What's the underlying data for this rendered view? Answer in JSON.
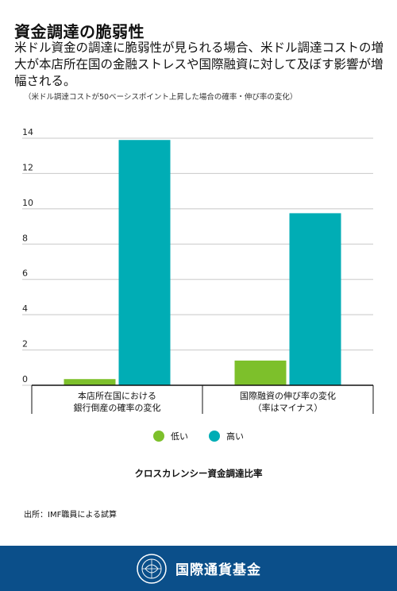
{
  "header": {
    "title": "資金調達の脆弱性",
    "subtitle": "米ドル資金の調達に脆弱性が見られる場合、米ドル調達コストの増大が本店所在国の金融ストレスや国際融資に対して及ぼす影響が増幅される。",
    "note": "（米ドル調達コストが50ベーシスポイント上昇した場合の確率・伸び率の変化）"
  },
  "chart_data": {
    "type": "bar",
    "categories": [
      "本店所在国における\n銀行倒産の確率の変化",
      "国際融資の伸び率の変化\n（率はマイナス）"
    ],
    "series": [
      {
        "name": "低い",
        "color": "#7dc02b",
        "values": [
          0.35,
          1.4
        ]
      },
      {
        "name": "高い",
        "color": "#00adb5",
        "values": [
          13.9,
          9.75
        ]
      }
    ],
    "yticks": [
      0,
      2,
      4,
      6,
      8,
      10,
      12,
      14
    ],
    "ylim": [
      0,
      14
    ],
    "xlabel": "クロスカレンシー資金調達比率",
    "grid": true
  },
  "source": "出所：IMF職員による試算",
  "footer": {
    "org_name": "国際通貨基金",
    "logo": "imf-seal"
  }
}
